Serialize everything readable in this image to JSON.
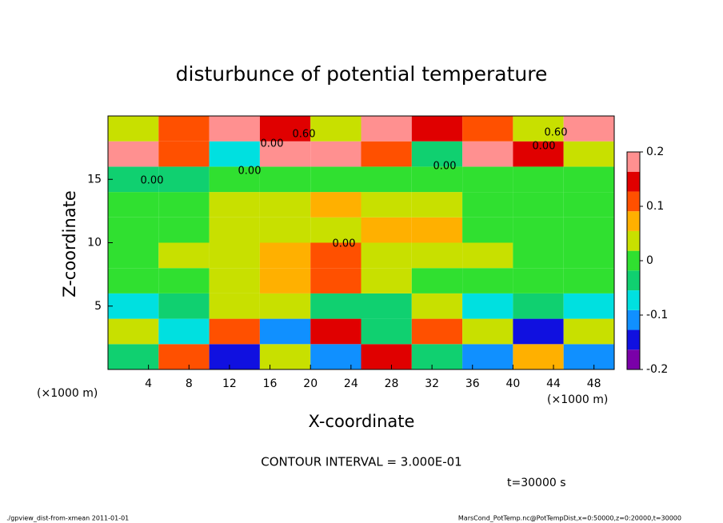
{
  "chart_data": {
    "type": "heatmap",
    "title": "disturbunce of potential temperature",
    "xlabel": "X-coordinate",
    "ylabel": "Z-coordinate",
    "x_unit_label": "(×1000 m)",
    "y_unit_label": "(×1000 m)",
    "contour_interval": "CONTOUR INTERVAL = 3.000E-01",
    "time_label": "t=30000 s",
    "footer_left": "./gpview_dist-from-xmean  2011-01-01",
    "footer_right": "MarsCond_PotTemp.nc@PotTempDist,x=0:50000,z=0:20000,t=30000",
    "contour_labels": [
      "0.60",
      "0.00",
      "0.00",
      "0.00",
      "0.60",
      "0.00",
      "0.00",
      "0.00"
    ],
    "x": [
      0,
      5,
      10,
      15,
      20,
      25,
      30,
      35,
      40,
      45,
      50
    ],
    "y": [
      0,
      2,
      4,
      6,
      8,
      10,
      12,
      14,
      16,
      18,
      20
    ],
    "z": [
      [
        -0.05,
        0.1,
        -0.15,
        0.05,
        -0.1,
        0.15,
        -0.05,
        -0.12,
        0.08,
        -0.1
      ],
      [
        0.02,
        -0.08,
        0.12,
        -0.1,
        0.15,
        -0.05,
        0.1,
        0.05,
        -0.15,
        0.03
      ],
      [
        -0.08,
        -0.05,
        0.02,
        0.05,
        -0.03,
        -0.05,
        0.02,
        -0.08,
        -0.05,
        -0.08
      ],
      [
        0,
        0.01,
        0.05,
        0.08,
        0.1,
        0.02,
        0,
        0.01,
        0,
        0
      ],
      [
        0,
        0.02,
        0.03,
        0.08,
        0.1,
        0.05,
        0.03,
        0.02,
        0,
        0
      ],
      [
        0.01,
        0,
        0.02,
        0.03,
        0.05,
        0.08,
        0.06,
        0.01,
        0,
        0
      ],
      [
        0,
        0,
        0.02,
        0.05,
        0.06,
        0.03,
        0.02,
        0.01,
        0,
        0
      ],
      [
        -0.02,
        -0.03,
        0,
        0,
        0,
        0,
        -0.01,
        0,
        0,
        0
      ],
      [
        0.2,
        0.1,
        -0.08,
        0.2,
        0.2,
        0.1,
        -0.05,
        0.2,
        0.15,
        0.05
      ],
      [
        0.05,
        0.1,
        0.2,
        0.15,
        0.05,
        0.2,
        0.15,
        0.1,
        0.05,
        0.2
      ]
    ],
    "xlim": [
      0,
      50
    ],
    "ylim": [
      0,
      20
    ],
    "xticks": [
      4,
      8,
      12,
      16,
      20,
      24,
      28,
      32,
      36,
      40,
      44,
      48
    ],
    "yticks": [
      5,
      10,
      15
    ],
    "clim": [
      -0.2,
      0.2
    ],
    "cticks": [
      -0.2,
      -0.1,
      0,
      0.1,
      0.2
    ],
    "colormap": [
      "#7a00a8",
      "#1010e0",
      "#1090ff",
      "#00e0e0",
      "#10d070",
      "#30e030",
      "#c8e000",
      "#ffb000",
      "#ff5000",
      "#e00000",
      "#ff9090"
    ]
  }
}
